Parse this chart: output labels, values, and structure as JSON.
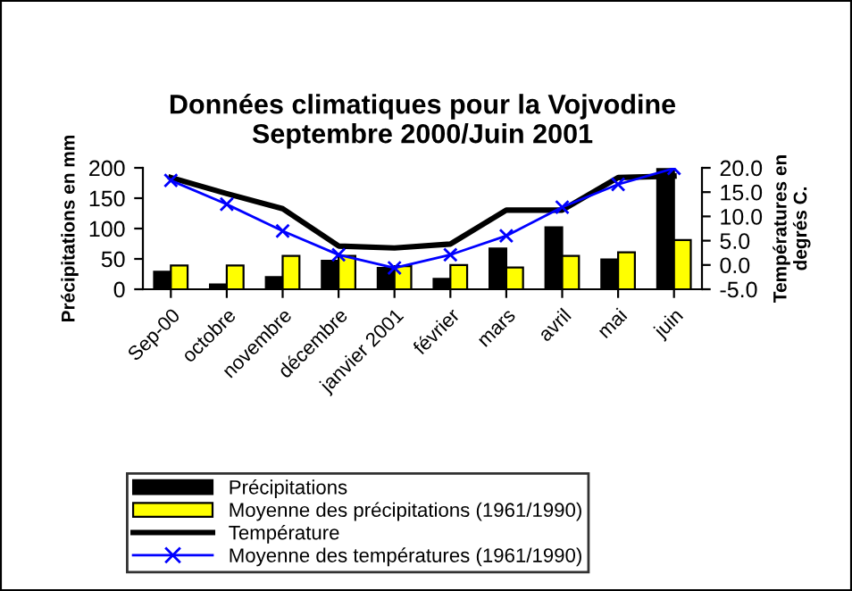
{
  "chart_data": {
    "type": "bar",
    "title": "Données climatiques pour la Vojvodine\nSeptembre 2000/Juin 2001",
    "categories": [
      "Sep-00",
      "octobre",
      "novembre",
      "décembre",
      "janvier 2001",
      "février",
      "mars",
      "avril",
      "mai",
      "juin"
    ],
    "ylabel": "Précipitations en mm",
    "y2label": "Températures en\ndegrés C.",
    "ylim": [
      0,
      200
    ],
    "yticks": [
      0,
      50,
      100,
      150,
      200
    ],
    "y2lim": [
      -5,
      20
    ],
    "y2ticks": [
      {
        "value": -5,
        "label": "-5.0"
      },
      {
        "value": 0,
        "label": "0.0"
      },
      {
        "value": 5,
        "label": "5.0"
      },
      {
        "value": 10,
        "label": "10.0"
      },
      {
        "value": 15,
        "label": "15.0"
      },
      {
        "value": 20,
        "label": "20.0"
      }
    ],
    "series": [
      {
        "name": "Précipitations",
        "color": "#000000",
        "values": [
          29,
          8,
          20,
          47,
          35,
          17,
          67,
          102,
          49,
          198
        ]
      },
      {
        "name": "Moyenne des précipitations (1961/1990)",
        "color": "#ffff00",
        "values": [
          39,
          39,
          55,
          55,
          38,
          40,
          36,
          55,
          61,
          81
        ]
      },
      {
        "name": "Température",
        "type": "line",
        "axis": "y2",
        "color": "#000000",
        "marker": "none",
        "values": [
          18.0,
          14.7,
          11.6,
          3.9,
          3.5,
          4.3,
          11.3,
          11.3,
          18.0,
          18.3
        ]
      },
      {
        "name": "Moyenne des températures (1961/1990)",
        "type": "line",
        "axis": "y2",
        "color": "#0000ff",
        "marker": "cross",
        "values": [
          17.4,
          12.5,
          7.0,
          2.1,
          -0.6,
          2.1,
          6.0,
          11.9,
          16.6,
          19.9
        ]
      }
    ],
    "line_style": "solid",
    "grid": false,
    "legend": "bottom"
  }
}
